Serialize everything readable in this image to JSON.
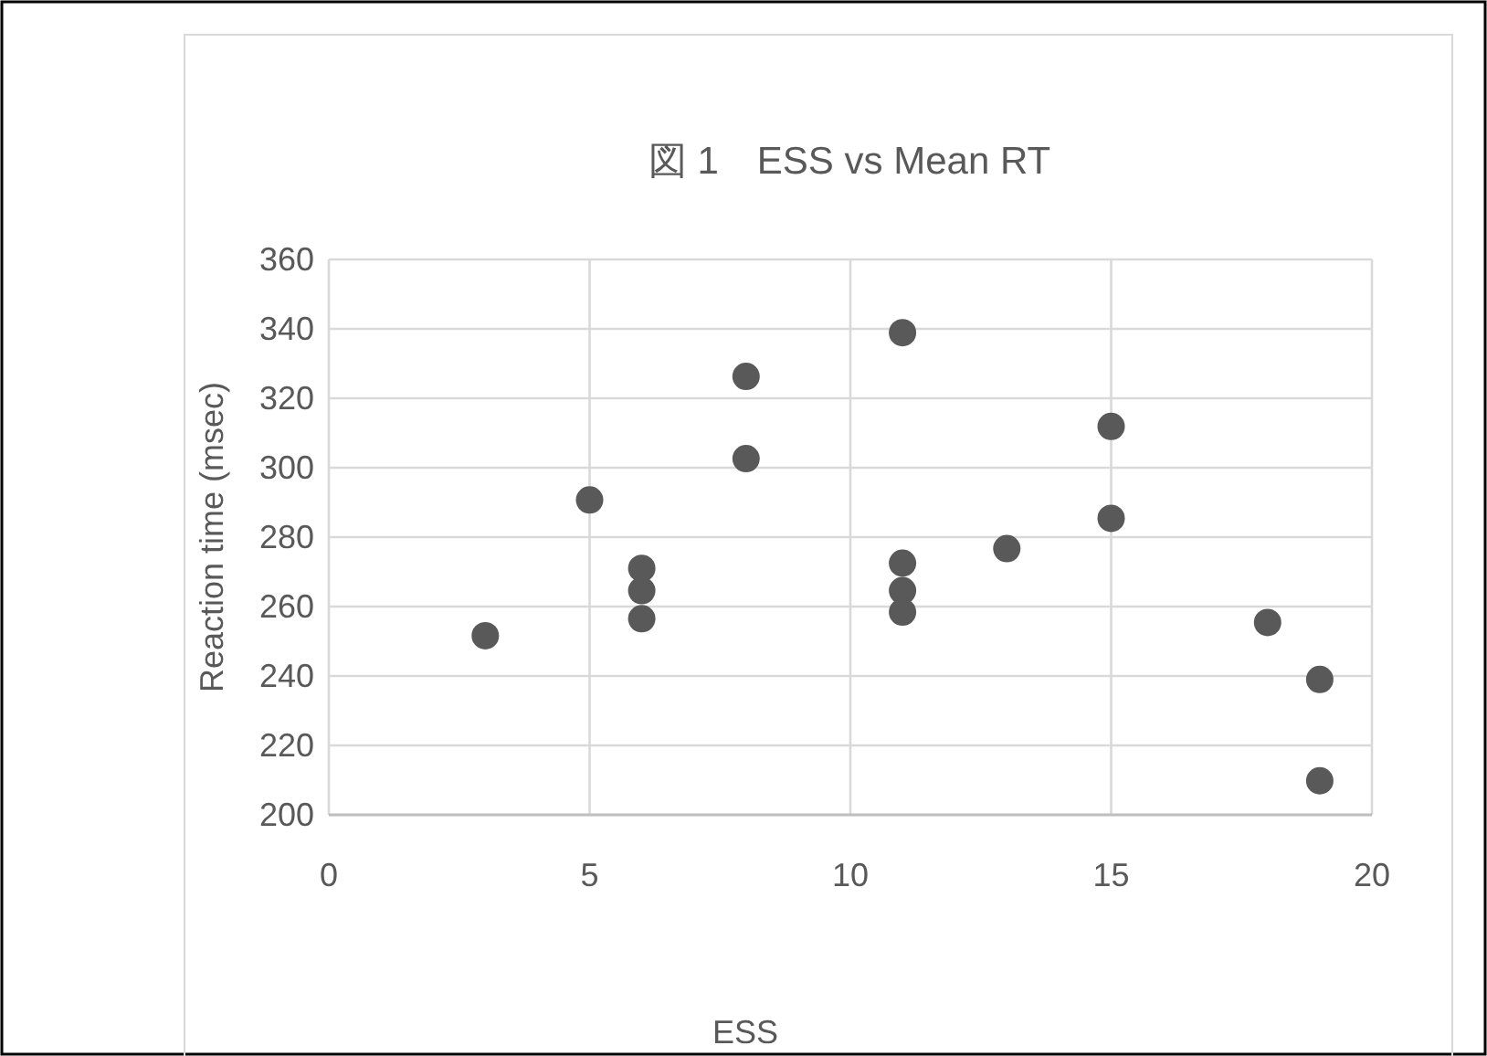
{
  "chart_data": {
    "type": "scatter",
    "title": "図 1　ESS vs Mean RT",
    "xlabel": "ESS",
    "ylabel": "Reaction time (msec)",
    "xlim": [
      0,
      20
    ],
    "xticks": [
      0,
      5,
      10,
      15,
      20
    ],
    "ylim": [
      200,
      360
    ],
    "yticks": [
      200,
      220,
      240,
      260,
      280,
      300,
      320,
      340,
      360
    ],
    "grid": true,
    "marker": "circle",
    "series": [
      {
        "color": "#595959",
        "x": [
          3,
          5,
          6,
          6,
          6,
          8,
          8,
          11,
          11,
          11,
          11,
          13,
          15,
          15,
          18,
          19,
          19
        ],
        "values": [
          251.6,
          290.7,
          271,
          264.6,
          256.5,
          326.3,
          302.6,
          338.9,
          272.5,
          264.6,
          258.4,
          276.7,
          311.9,
          285.4,
          255.4,
          239,
          209.8
        ]
      }
    ]
  }
}
